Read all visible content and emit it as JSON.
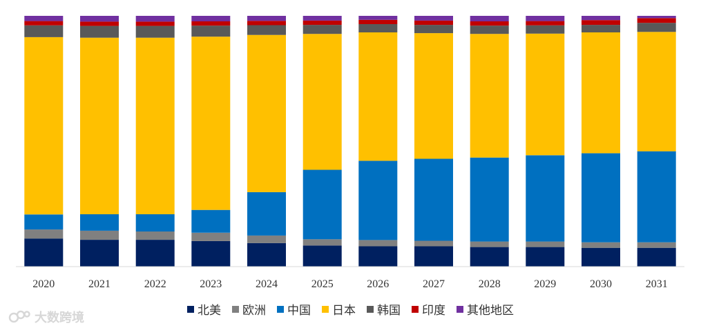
{
  "chart_data": {
    "type": "bar",
    "stacked": true,
    "percent": true,
    "categories": [
      "2020",
      "2021",
      "2022",
      "2023",
      "2024",
      "2025",
      "2026",
      "2027",
      "2028",
      "2029",
      "2030",
      "2031"
    ],
    "series": [
      {
        "name": "北美",
        "color": "#002060",
        "values": [
          11.2,
          10.7,
          10.7,
          10.2,
          9.4,
          8.4,
          8.1,
          8.1,
          7.8,
          7.8,
          7.5,
          7.5
        ]
      },
      {
        "name": "欧洲",
        "color": "#808080",
        "values": [
          3.6,
          3.6,
          3.3,
          3.3,
          3.0,
          2.5,
          2.5,
          2.2,
          2.2,
          2.2,
          2.2,
          2.2
        ]
      },
      {
        "name": "中国",
        "color": "#0070C0",
        "values": [
          6.0,
          6.6,
          6.9,
          9.1,
          17.3,
          27.7,
          31.6,
          32.7,
          33.5,
          34.4,
          35.5,
          36.3
        ]
      },
      {
        "name": "日本",
        "color": "#FFC000",
        "values": [
          70.7,
          70.4,
          70.4,
          69.1,
          62.7,
          54.2,
          51.2,
          50.1,
          49.3,
          48.5,
          48.2,
          47.6
        ]
      },
      {
        "name": "韩国",
        "color": "#595959",
        "values": [
          4.7,
          4.7,
          4.7,
          4.4,
          3.9,
          3.6,
          3.3,
          3.3,
          3.3,
          3.3,
          3.0,
          3.6
        ]
      },
      {
        "name": "印度",
        "color": "#C00000",
        "values": [
          1.7,
          1.7,
          1.7,
          1.7,
          1.7,
          1.7,
          1.7,
          1.7,
          1.7,
          1.7,
          1.9,
          1.9
        ]
      },
      {
        "name": "其他地区",
        "color": "#7030A0",
        "values": [
          2.1,
          2.3,
          2.3,
          2.2,
          2.0,
          1.9,
          1.6,
          1.9,
          2.2,
          2.1,
          1.7,
          0.9
        ]
      }
    ],
    "ylim": [
      0,
      100
    ],
    "grid": false,
    "legend_position": "bottom"
  },
  "watermark": {
    "text": "大数跨境"
  }
}
